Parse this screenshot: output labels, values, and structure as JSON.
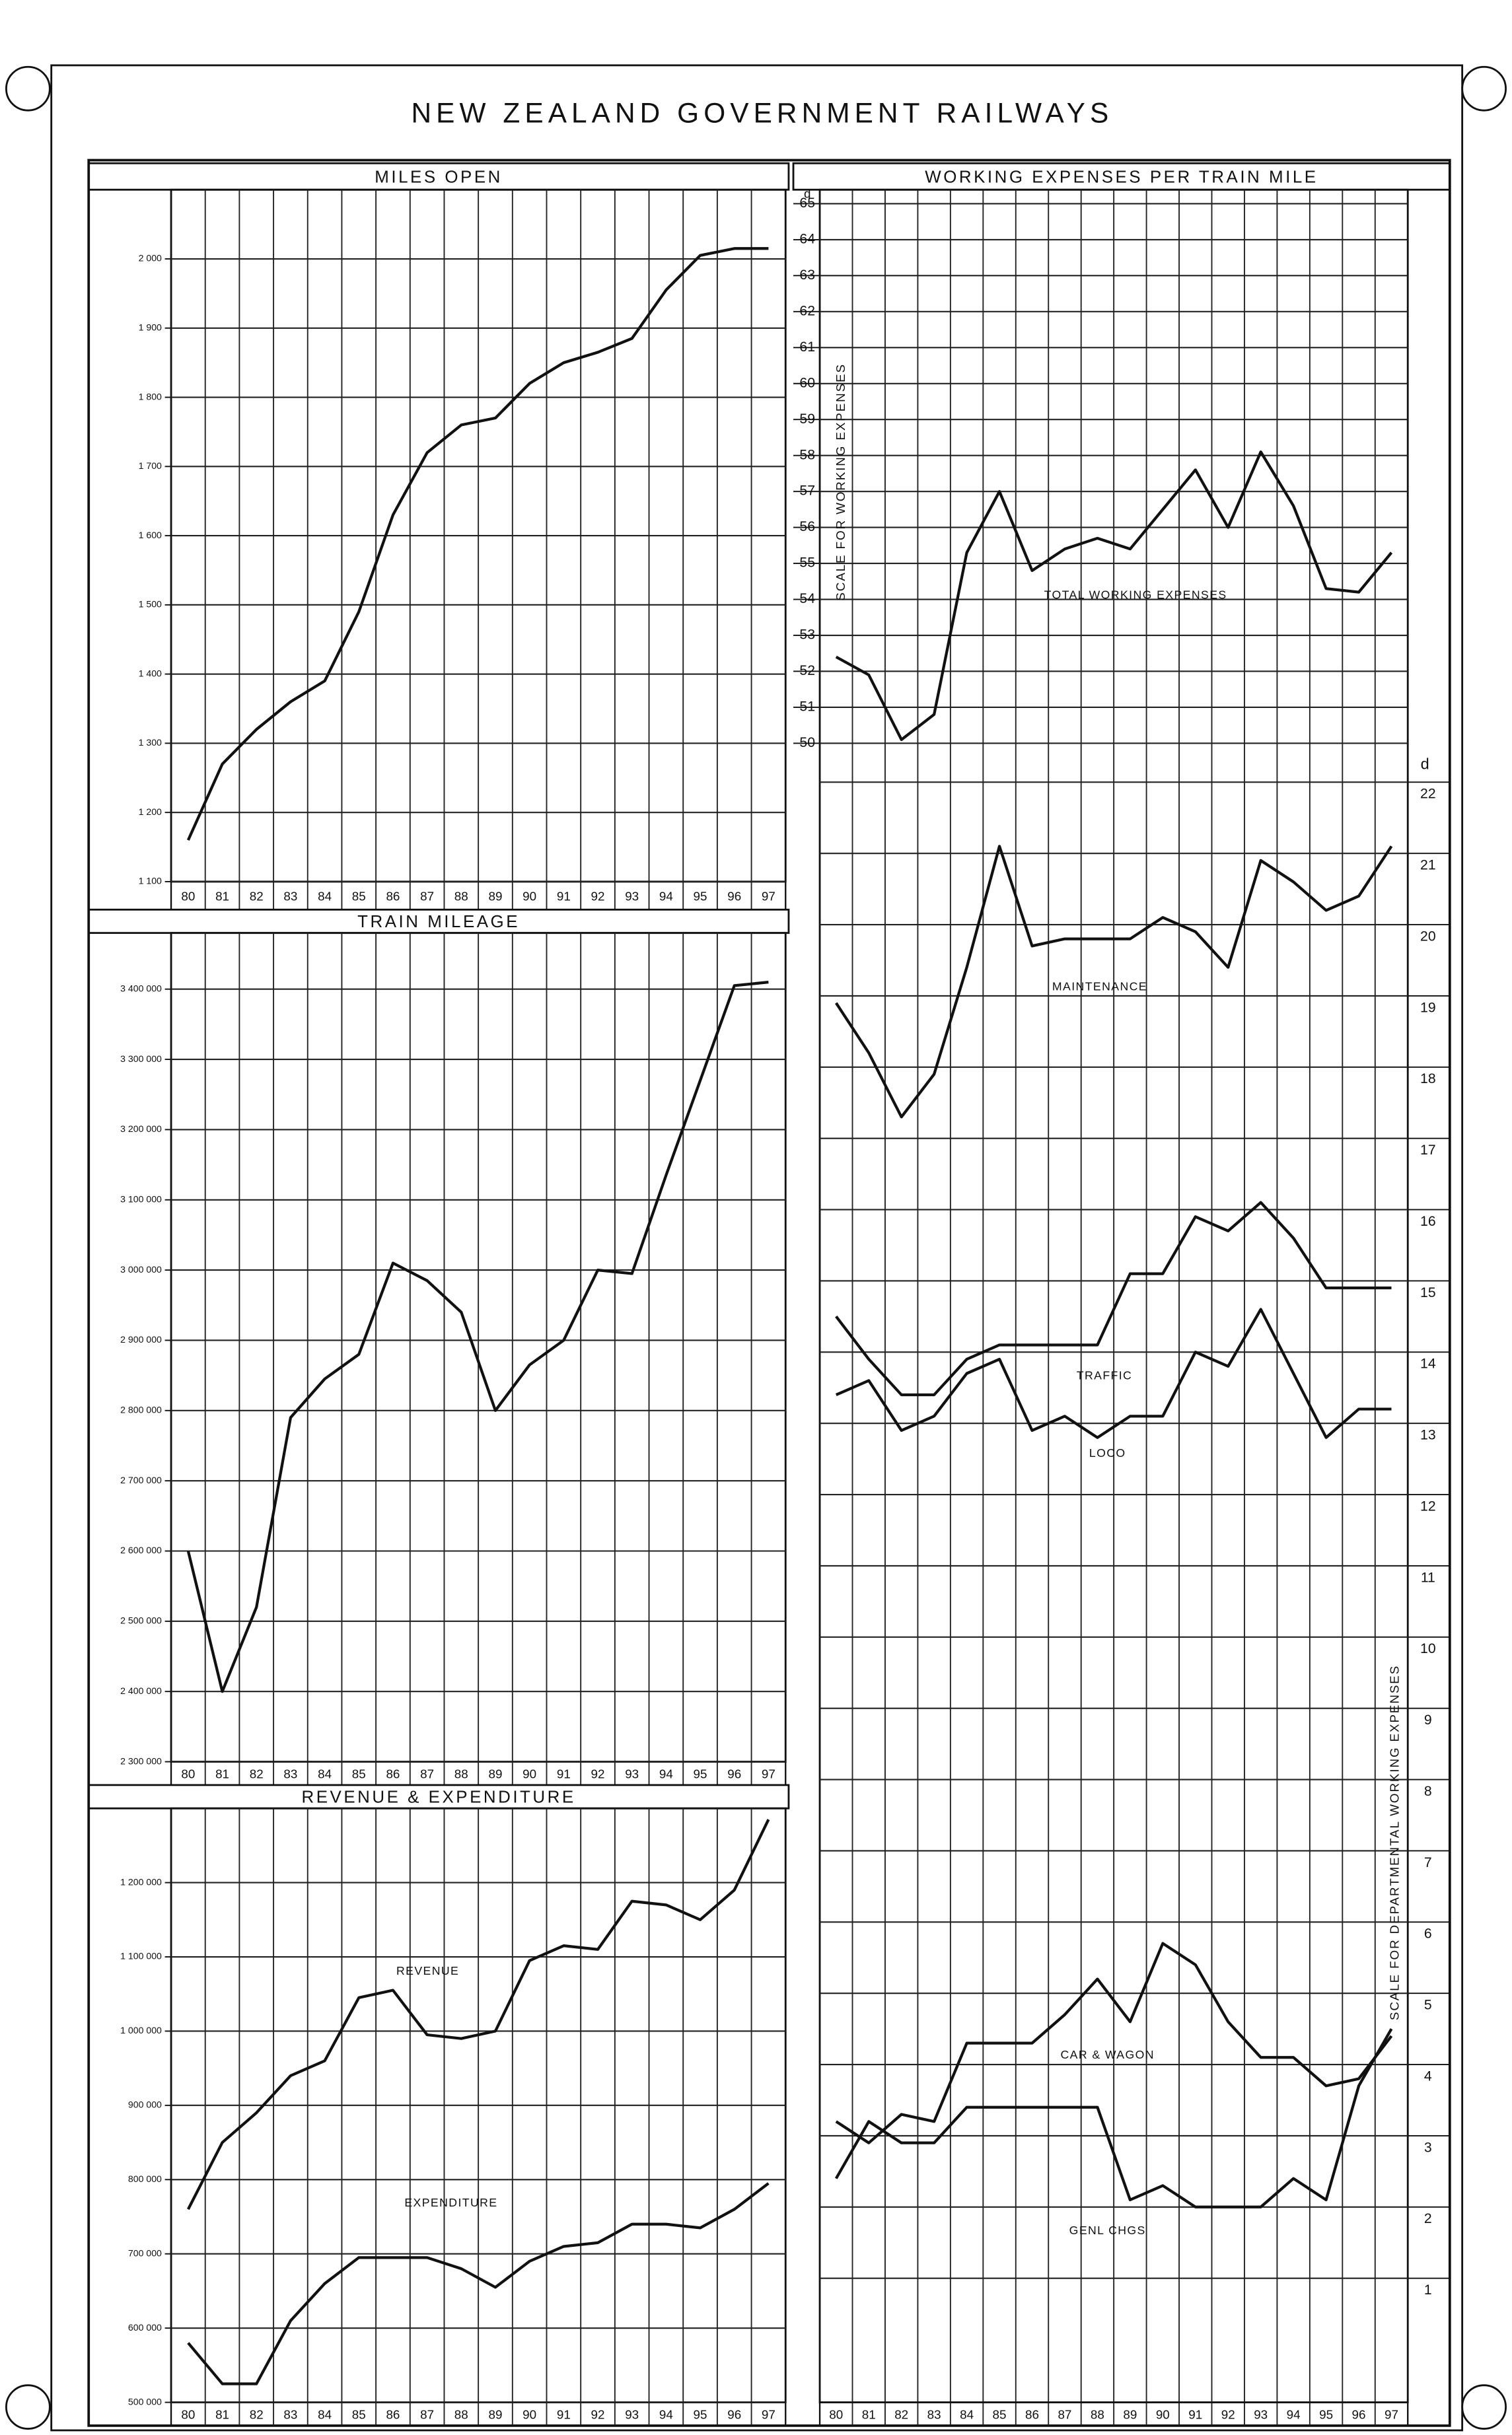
{
  "title": "NEW ZEALAND GOVERNMENT RAILWAYS",
  "chart_data": [
    {
      "type": "line",
      "title": "MILES OPEN",
      "categories": [
        "80",
        "81",
        "82",
        "83",
        "84",
        "85",
        "86",
        "87",
        "88",
        "89",
        "90",
        "91",
        "92",
        "93",
        "94",
        "95",
        "96",
        "97"
      ],
      "values": [
        1160,
        1270,
        1320,
        1360,
        1390,
        1490,
        1630,
        1720,
        1760,
        1770,
        1820,
        1850,
        1865,
        1885,
        1955,
        2005,
        2015,
        2015
      ],
      "color": "#111111",
      "ylim": [
        1100,
        2100
      ],
      "yticks": [
        {
          "value": 1100,
          "label": "1 100"
        },
        {
          "value": 1200,
          "label": "1 200"
        },
        {
          "value": 1300,
          "label": "1 300"
        },
        {
          "value": 1400,
          "label": "1 400"
        },
        {
          "value": 1500,
          "label": "1 500"
        },
        {
          "value": 1600,
          "label": "1 600"
        },
        {
          "value": 1700,
          "label": "1 700"
        },
        {
          "value": 1800,
          "label": "1 800"
        },
        {
          "value": 1900,
          "label": "1 900"
        },
        {
          "value": 2000,
          "label": "2 000"
        }
      ],
      "grid": true
    },
    {
      "type": "line",
      "title": "TRAIN MILEAGE",
      "categories": [
        "80",
        "81",
        "82",
        "83",
        "84",
        "85",
        "86",
        "87",
        "88",
        "89",
        "90",
        "91",
        "92",
        "93",
        "94",
        "95",
        "96",
        "97"
      ],
      "values": [
        2600000,
        2400000,
        2520000,
        2790000,
        2845000,
        2880000,
        3010000,
        2985000,
        2940000,
        2800000,
        2865000,
        2900000,
        3000000,
        2995000,
        3135000,
        3270000,
        3405000,
        3410000
      ],
      "color": "#111111",
      "ylim": [
        2300000,
        3480000
      ],
      "yticks": [
        {
          "value": 2300000,
          "label": "2 300 000"
        },
        {
          "value": 2400000,
          "label": "2 400 000"
        },
        {
          "value": 2500000,
          "label": "2 500 000"
        },
        {
          "value": 2600000,
          "label": "2 600 000"
        },
        {
          "value": 2700000,
          "label": "2 700 000"
        },
        {
          "value": 2800000,
          "label": "2 800 000"
        },
        {
          "value": 2900000,
          "label": "2 900 000"
        },
        {
          "value": 3000000,
          "label": "3 000 000"
        },
        {
          "value": 3100000,
          "label": "3 100 000"
        },
        {
          "value": 3200000,
          "label": "3 200 000"
        },
        {
          "value": 3300000,
          "label": "3 300 000"
        },
        {
          "value": 3400000,
          "label": "3 400 000"
        }
      ],
      "grid": true
    },
    {
      "type": "line",
      "title": "REVENUE & EXPENDITURE",
      "categories": [
        "80",
        "81",
        "82",
        "83",
        "84",
        "85",
        "86",
        "87",
        "88",
        "89",
        "90",
        "91",
        "92",
        "93",
        "94",
        "95",
        "96",
        "97"
      ],
      "series": [
        {
          "name": "REVENUE",
          "color": "#111111",
          "values": [
            760000,
            850000,
            890000,
            940000,
            960000,
            1045000,
            1055000,
            995000,
            990000,
            1000000,
            1095000,
            1115000,
            1110000,
            1175000,
            1170000,
            1150000,
            1190000,
            1285000
          ]
        },
        {
          "name": "EXPENDITURE",
          "color": "#111111",
          "values": [
            580000,
            525000,
            525000,
            610000,
            660000,
            695000,
            695000,
            695000,
            680000,
            655000,
            690000,
            710000,
            715000,
            740000,
            740000,
            735000,
            760000,
            795000
          ]
        }
      ],
      "ylim": [
        500000,
        1300000
      ],
      "yticks": [
        {
          "value": 500000,
          "label": "500 000"
        },
        {
          "value": 600000,
          "label": "600 000"
        },
        {
          "value": 700000,
          "label": "700 000"
        },
        {
          "value": 800000,
          "label": "800 000"
        },
        {
          "value": 900000,
          "label": "900 000"
        },
        {
          "value": 1000000,
          "label": "1 000 000"
        },
        {
          "value": 1100000,
          "label": "1 100 000"
        },
        {
          "value": 1200000,
          "label": "1 200 000"
        }
      ],
      "grid": true
    },
    {
      "type": "line",
      "title": "WORKING EXPENSES PER TRAIN MILE",
      "ylabel": "SCALE FOR WORKING EXPENSES",
      "y2label": "SCALE FOR DEPARTMENTAL WORKING EXPENSES",
      "y_unit_label": "d",
      "y2_unit_label": "d",
      "categories": [
        "80",
        "81",
        "82",
        "83",
        "84",
        "85",
        "86",
        "87",
        "88",
        "89",
        "90",
        "91",
        "92",
        "93",
        "94",
        "95",
        "96",
        "97"
      ],
      "series": [
        {
          "name": "TOTAL WORKING EXPENSES",
          "color": "#111111",
          "values": [
            52.4,
            51.9,
            50.1,
            50.8,
            55.3,
            57.0,
            54.8,
            55.4,
            55.7,
            55.4,
            56.5,
            57.6,
            56.0,
            58.1,
            56.6,
            54.3,
            54.2,
            55.3
          ]
        },
        {
          "name": "MAINTENANCE",
          "color": "#111111",
          "axis": "y2",
          "values": [
            18.9,
            18.2,
            17.3,
            17.9,
            19.4,
            21.1,
            19.7,
            19.8,
            19.8,
            19.8,
            20.1,
            19.9,
            19.4,
            20.9,
            20.6,
            20.2,
            20.4,
            21.1
          ]
        },
        {
          "name": "TRAFFIC",
          "color": "#111111",
          "axis": "y2",
          "values": [
            14.5,
            13.9,
            13.4,
            13.4,
            13.9,
            14.1,
            14.1,
            14.1,
            14.1,
            15.1,
            15.1,
            15.9,
            15.7,
            16.1,
            15.6,
            14.9,
            14.9,
            14.9
          ]
        },
        {
          "name": "LOCO",
          "color": "#111111",
          "axis": "y2",
          "values": [
            13.4,
            13.6,
            12.9,
            13.1,
            13.7,
            13.9,
            12.9,
            13.1,
            12.8,
            13.1,
            13.1,
            14.0,
            13.8,
            14.6,
            13.7,
            12.8,
            13.2,
            13.2
          ]
        },
        {
          "name": "CAR & WAGON",
          "color": "#111111",
          "axis": "y2",
          "values": [
            3.2,
            2.9,
            3.3,
            3.2,
            4.3,
            4.3,
            4.3,
            4.7,
            5.2,
            4.6,
            5.7,
            5.4,
            4.6,
            4.1,
            4.1,
            3.7,
            3.8,
            4.4
          ]
        },
        {
          "name": "GENL CHGS",
          "color": "#111111",
          "axis": "y2",
          "values": [
            2.4,
            3.2,
            2.9,
            2.9,
            3.4,
            3.4,
            3.4,
            3.4,
            3.4,
            2.1,
            2.3,
            2.0,
            2.0,
            2.0,
            2.4,
            2.1,
            3.7,
            4.5
          ]
        }
      ],
      "ylim": [
        50,
        65
      ],
      "yticks": [
        50,
        51,
        52,
        53,
        54,
        55,
        56,
        57,
        58,
        59,
        60,
        61,
        62,
        63,
        64,
        65
      ],
      "y2lim": [
        0,
        22
      ],
      "y2ticks": [
        1,
        2,
        3,
        4,
        5,
        6,
        7,
        8,
        9,
        10,
        11,
        12,
        13,
        14,
        15,
        16,
        17,
        18,
        19,
        20,
        21,
        22
      ],
      "grid": true
    }
  ]
}
